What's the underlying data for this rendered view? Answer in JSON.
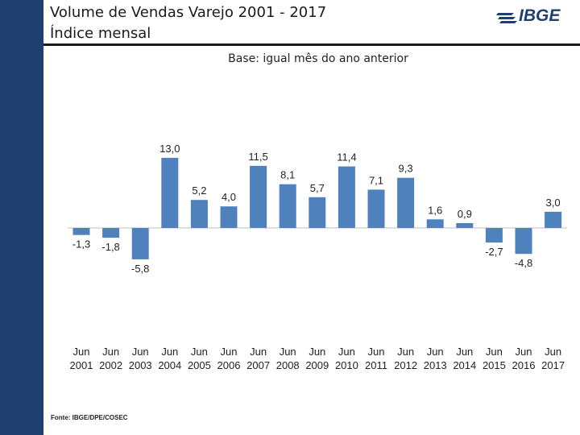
{
  "header": {
    "title": "Volume de Vendas Varejo 2001 - 2017",
    "subtitle": "Índice mensal",
    "logo_text": "IBGE"
  },
  "chart_data": {
    "type": "bar",
    "title": "Volume de Vendas Varejo 2001 - 2017",
    "subtitle": "Base: igual mês do ano anterior",
    "categories": [
      [
        "Jun",
        "2001"
      ],
      [
        "Jun",
        "2002"
      ],
      [
        "Jun",
        "2003"
      ],
      [
        "Jun",
        "2004"
      ],
      [
        "Jun",
        "2005"
      ],
      [
        "Jun",
        "2006"
      ],
      [
        "Jun",
        "2007"
      ],
      [
        "Jun",
        "2008"
      ],
      [
        "Jun",
        "2009"
      ],
      [
        "Jun",
        "2010"
      ],
      [
        "Jun",
        "2011"
      ],
      [
        "Jun",
        "2012"
      ],
      [
        "Jun",
        "2013"
      ],
      [
        "Jun",
        "2014"
      ],
      [
        "Jun",
        "2015"
      ],
      [
        "Jun",
        "2016"
      ],
      [
        "Jun",
        "2017"
      ]
    ],
    "values": [
      -1.3,
      -1.8,
      -5.8,
      13.0,
      5.2,
      4.0,
      11.5,
      8.1,
      5.7,
      11.4,
      7.1,
      9.3,
      1.6,
      0.9,
      -2.7,
      -4.8,
      3.0
    ],
    "labels": [
      "-1,3",
      "-1,8",
      "-5,8",
      "13,0",
      "5,2",
      "4,0",
      "11,5",
      "8,1",
      "5,7",
      "11,4",
      "7,1",
      "9,3",
      "1,6",
      "0,9",
      "-2,7",
      "-4,8",
      "3,0"
    ],
    "bar_color": "#4f81bd",
    "xlabel": "",
    "ylabel": "",
    "grid": false
  },
  "footer": {
    "source": "Fonte: IBGE/DPE/COSEC"
  }
}
